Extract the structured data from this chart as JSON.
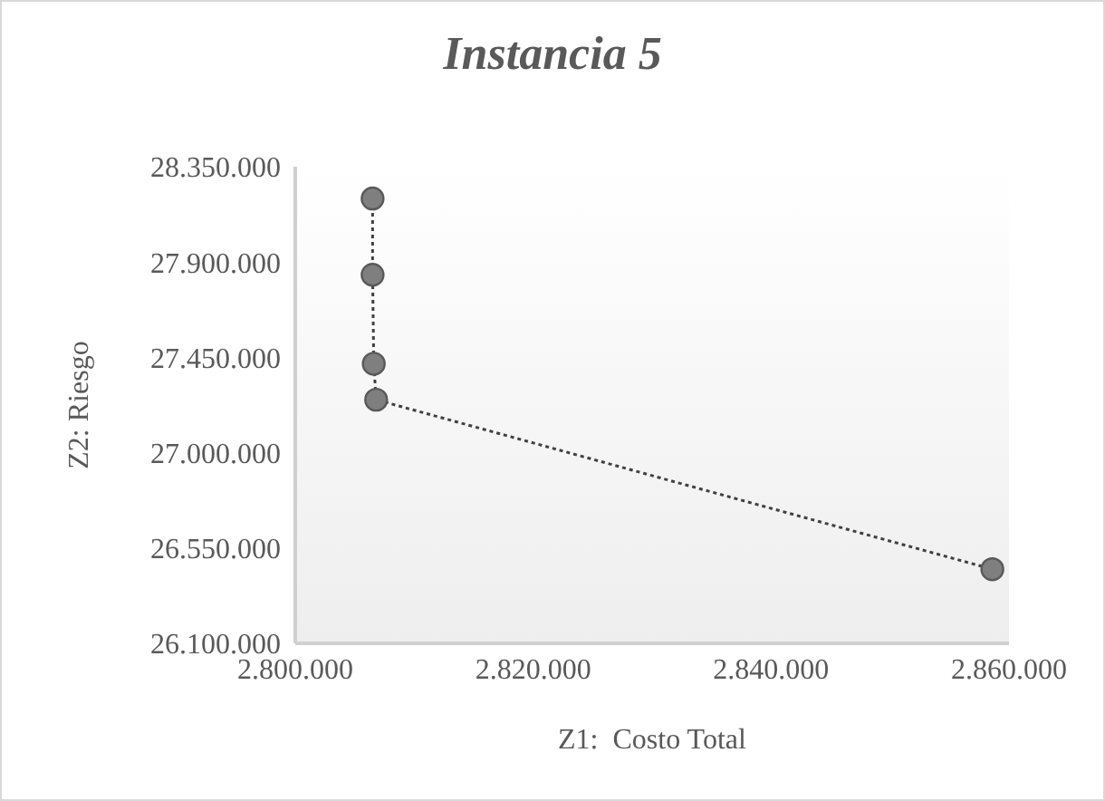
{
  "chart_data": {
    "type": "line",
    "title": "Instancia 5",
    "xlabel": "Z1:  Costo Total",
    "ylabel": "Z2: Riesgo",
    "x": [
      2806500,
      2806500,
      2806600,
      2806800,
      2858600
    ],
    "series": [
      {
        "color": "#7f7f7f",
        "values": [
          28200000,
          27840000,
          27420000,
          27250000,
          26450000
        ]
      }
    ],
    "xlim": [
      2800000,
      2860000
    ],
    "xticks": [
      {
        "value": 2800000,
        "label": "2.800.000"
      },
      {
        "value": 2820000,
        "label": "2.820.000"
      },
      {
        "value": 2840000,
        "label": "2.840.000"
      },
      {
        "value": 2860000,
        "label": "2.860.000"
      }
    ],
    "ylim": [
      26100000,
      28350000
    ],
    "yticks": [
      {
        "value": 26100000,
        "label": "26.100.000"
      },
      {
        "value": 26550000,
        "label": "26.550.000"
      },
      {
        "value": 27000000,
        "label": "27.000.000"
      },
      {
        "value": 27450000,
        "label": "27.450.000"
      },
      {
        "value": 27900000,
        "label": "27.900.000"
      },
      {
        "value": 28350000,
        "label": "28.350.000"
      }
    ],
    "marker": "circle",
    "line_style": "dotted",
    "grid": false,
    "legend": false
  }
}
